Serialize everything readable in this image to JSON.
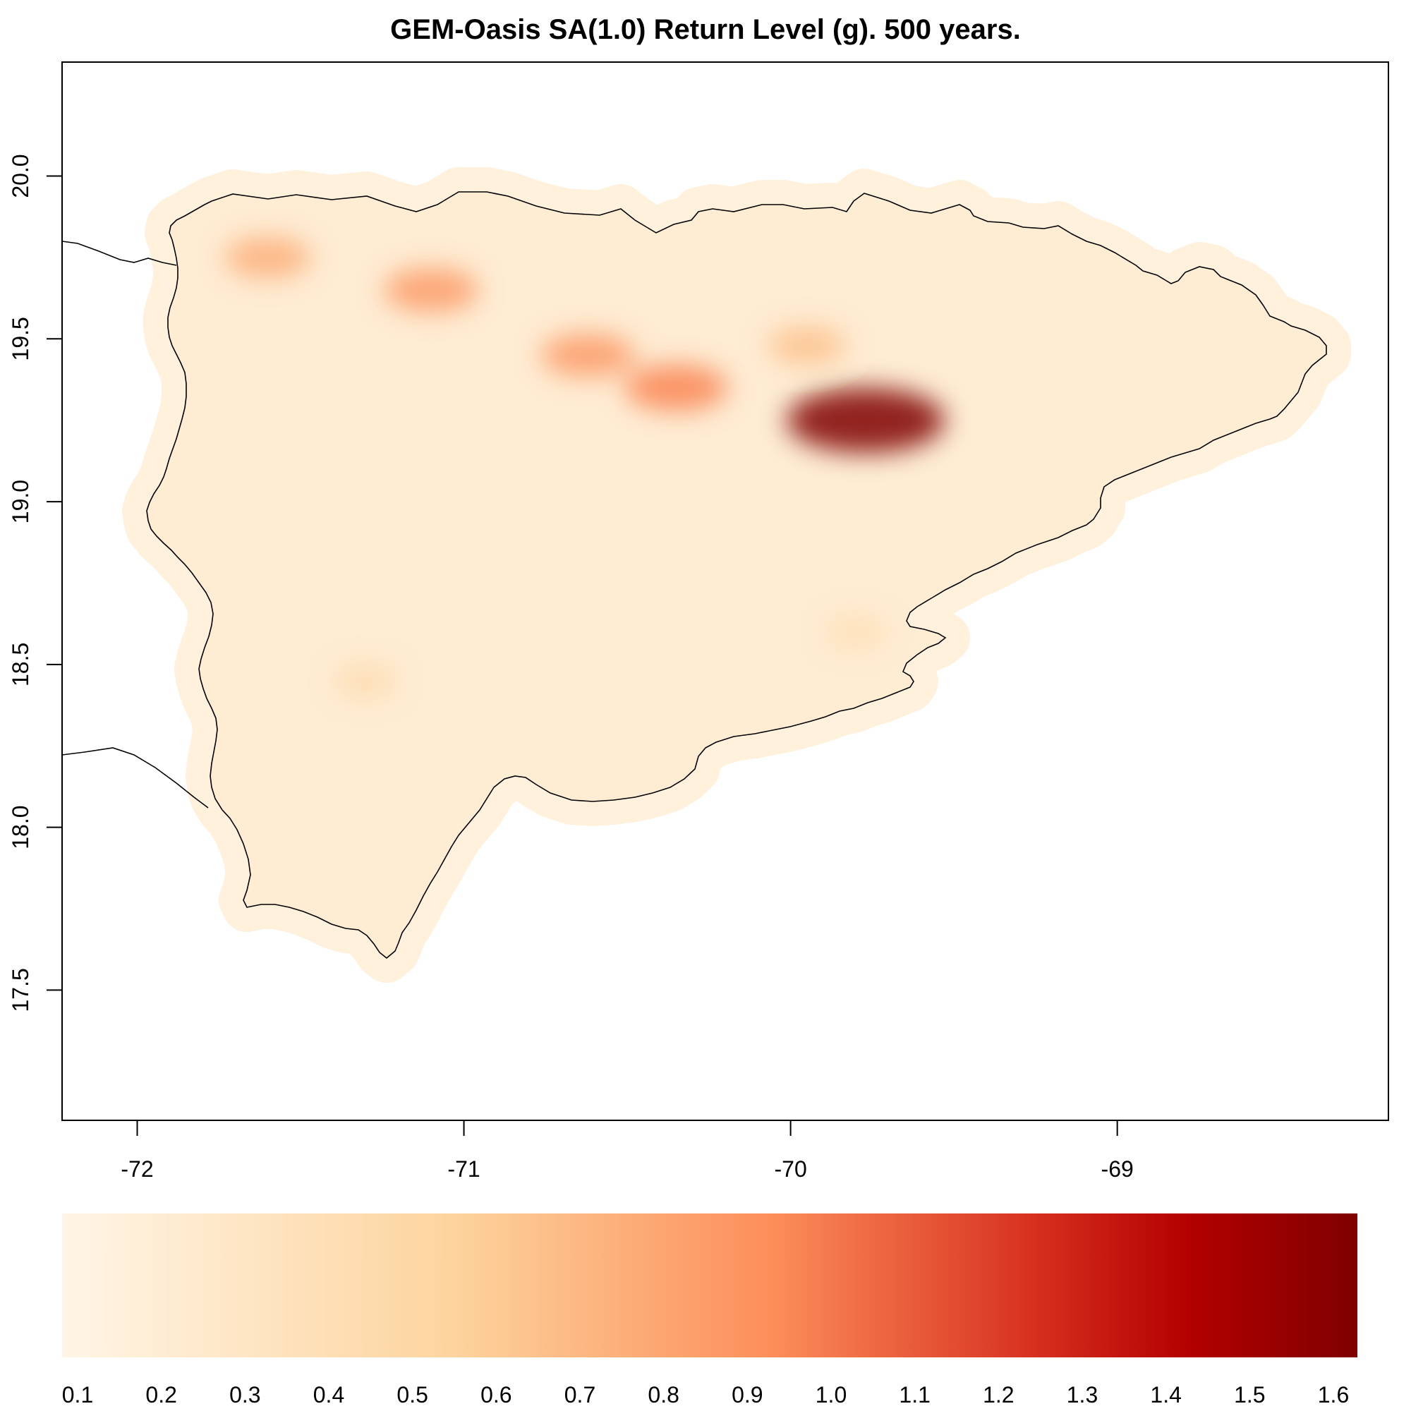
{
  "title": "GEM-Oasis SA(1.0) Return Level (g). 500 years.",
  "map": {
    "type": "heatmap",
    "xlim": [
      -72.23,
      -68.17
    ],
    "ylim": [
      17.1,
      20.35
    ],
    "x_ticks": [
      {
        "value": -72,
        "label": "-72"
      },
      {
        "value": -71,
        "label": "-71"
      },
      {
        "value": -70,
        "label": "-70"
      },
      {
        "value": -69,
        "label": "-69"
      }
    ],
    "y_ticks": [
      {
        "value": 17.5,
        "label": "17.5"
      },
      {
        "value": 18.0,
        "label": "18.0"
      },
      {
        "value": 18.5,
        "label": "18.5"
      },
      {
        "value": 19.0,
        "label": "19.0"
      },
      {
        "value": 19.5,
        "label": "19.5"
      },
      {
        "value": 20.0,
        "label": "20.0"
      }
    ],
    "grid": false,
    "coastline_color": "#000000",
    "hotspots": [
      {
        "lon": -69.77,
        "lat": 19.25,
        "value": 1.6
      },
      {
        "lon": -70.35,
        "lat": 19.35,
        "value": 0.95
      },
      {
        "lon": -70.62,
        "lat": 19.45,
        "value": 0.85
      },
      {
        "lon": -71.1,
        "lat": 19.65,
        "value": 0.85
      },
      {
        "lon": -71.6,
        "lat": 19.75,
        "value": 0.75
      },
      {
        "lon": -69.95,
        "lat": 19.48,
        "value": 0.65
      },
      {
        "lon": -71.3,
        "lat": 18.45,
        "value": 0.45
      },
      {
        "lon": -69.8,
        "lat": 18.6,
        "value": 0.42
      }
    ]
  },
  "colorbar": {
    "colors": [
      "#fff5e6",
      "#fdd49e",
      "#fc8d59",
      "#d7301f",
      "#b30000",
      "#7f0000"
    ],
    "stops": [
      0.0,
      0.3,
      0.55,
      0.75,
      0.87,
      1.0
    ],
    "range": [
      0.1,
      1.6
    ],
    "tick_labels": [
      "0.1",
      "0.2",
      "0.3",
      "0.4",
      "0.5",
      "0.6",
      "0.7",
      "0.8",
      "0.9",
      "1.0",
      "1.1",
      "1.2",
      "1.3",
      "1.4",
      "1.5",
      "1.6"
    ]
  }
}
